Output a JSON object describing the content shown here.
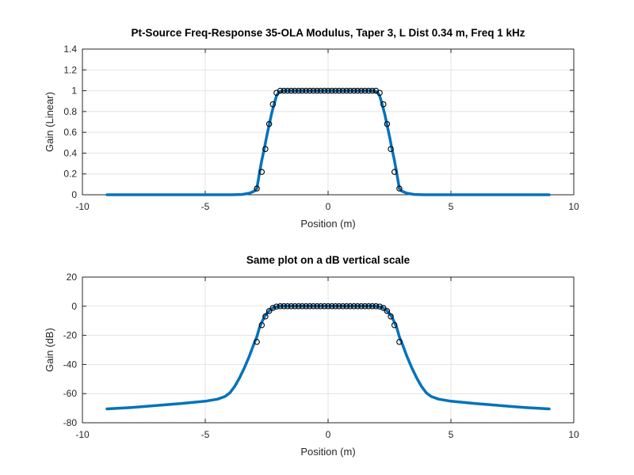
{
  "chart_data": [
    {
      "type": "line",
      "title": "Pt-Source Freq-Response 35-OLA Modulus, Taper 3, L Dist 0.34 m, Freq 1 kHz",
      "xlabel": "Position (m)",
      "ylabel": "Gain (Linear)",
      "xlim": [
        -10,
        10
      ],
      "ylim": [
        0,
        1.4
      ],
      "xticks": [
        -10,
        -5,
        0,
        5,
        10
      ],
      "yticks": [
        0,
        0.2,
        0.4,
        0.6,
        0.8,
        1,
        1.2,
        1.4
      ],
      "xtick_labels": [
        "-10",
        "-5",
        "0",
        "5",
        "10"
      ],
      "ytick_labels": [
        "0",
        "0.2",
        "0.4",
        "0.6",
        "0.8",
        "1",
        "1.2",
        "1.4"
      ],
      "grid": true,
      "line_color": "#0072BD",
      "series": [
        {
          "kind": "line",
          "x": [
            -9.0,
            -6.0,
            -4.5,
            -3.9,
            -3.5,
            -3.2,
            -3.0,
            -2.9,
            -2.8,
            -2.7,
            -2.6,
            -2.5,
            -2.4,
            -2.3,
            -2.2,
            -2.1,
            -2.0,
            -1.8,
            0.0,
            1.8,
            2.0,
            2.1,
            2.2,
            2.3,
            2.4,
            2.5,
            2.6,
            2.7,
            2.8,
            2.9,
            3.0,
            3.2,
            3.5,
            3.9,
            4.5,
            6.0,
            9.0
          ],
          "y": [
            0.0,
            0.0,
            0.0,
            0.0,
            0.003,
            0.015,
            0.035,
            0.06,
            0.2,
            0.33,
            0.44,
            0.56,
            0.67,
            0.78,
            0.87,
            0.95,
            0.99,
            1.0,
            1.0,
            1.0,
            0.99,
            0.95,
            0.87,
            0.78,
            0.67,
            0.56,
            0.44,
            0.33,
            0.2,
            0.06,
            0.035,
            0.015,
            0.003,
            0.0,
            0.0,
            0.0,
            0.0
          ]
        },
        {
          "kind": "markers",
          "x": [
            -2.9,
            -2.7,
            -2.55,
            -2.4,
            -2.25,
            -2.1,
            -1.95,
            -1.8,
            -1.65,
            -1.5,
            -1.35,
            -1.2,
            -1.05,
            -0.9,
            -0.75,
            -0.6,
            -0.45,
            -0.3,
            -0.15,
            0.0,
            0.15,
            0.3,
            0.45,
            0.6,
            0.75,
            0.9,
            1.05,
            1.2,
            1.35,
            1.5,
            1.65,
            1.8,
            1.95,
            2.1,
            2.25,
            2.4,
            2.55,
            2.7,
            2.9
          ],
          "y": [
            0.06,
            0.22,
            0.44,
            0.68,
            0.87,
            0.98,
            1.0,
            1.0,
            1.0,
            1.0,
            1.0,
            1.0,
            1.0,
            1.0,
            1.0,
            1.0,
            1.0,
            1.0,
            1.0,
            1.0,
            1.0,
            1.0,
            1.0,
            1.0,
            1.0,
            1.0,
            1.0,
            1.0,
            1.0,
            1.0,
            1.0,
            1.0,
            1.0,
            0.98,
            0.87,
            0.68,
            0.44,
            0.22,
            0.06
          ]
        }
      ]
    },
    {
      "type": "line",
      "title": "Same plot on a dB vertical scale",
      "xlabel": "Position (m)",
      "ylabel": "Gain (dB)",
      "xlim": [
        -10,
        10
      ],
      "ylim": [
        -80,
        20
      ],
      "xticks": [
        -10,
        -5,
        0,
        5,
        10
      ],
      "yticks": [
        -80,
        -60,
        -40,
        -20,
        0,
        20
      ],
      "xtick_labels": [
        "-10",
        "-5",
        "0",
        "5",
        "10"
      ],
      "ytick_labels": [
        "-80",
        "-60",
        "-40",
        "-20",
        "0",
        "20"
      ],
      "grid": true,
      "line_color": "#0072BD",
      "series": [
        {
          "kind": "line",
          "x": [
            -9.0,
            -8.0,
            -7.0,
            -6.0,
            -5.0,
            -4.5,
            -4.2,
            -4.0,
            -3.8,
            -3.6,
            -3.4,
            -3.2,
            -3.0,
            -2.9,
            -2.8,
            -2.7,
            -2.6,
            -2.5,
            -2.4,
            -2.3,
            -2.2,
            -2.1,
            -2.0,
            -1.9,
            0.0,
            1.9,
            2.0,
            2.1,
            2.2,
            2.3,
            2.4,
            2.5,
            2.6,
            2.7,
            2.8,
            2.9,
            3.0,
            3.2,
            3.4,
            3.6,
            3.8,
            4.0,
            4.2,
            4.5,
            5.0,
            6.0,
            7.0,
            8.0,
            9.0
          ],
          "y": [
            -70.5,
            -69.5,
            -68.2,
            -66.8,
            -65.2,
            -63.8,
            -62.0,
            -59.5,
            -55.0,
            -49.0,
            -42.0,
            -34.0,
            -25.0,
            -21.0,
            -15.0,
            -11.0,
            -7.5,
            -5.0,
            -3.2,
            -1.8,
            -0.8,
            -0.3,
            -0.1,
            0.0,
            0.0,
            0.0,
            -0.1,
            -0.3,
            -0.8,
            -1.8,
            -3.2,
            -5.0,
            -7.5,
            -11.0,
            -15.0,
            -21.0,
            -25.0,
            -34.0,
            -42.0,
            -49.0,
            -55.0,
            -59.5,
            -62.0,
            -63.8,
            -65.2,
            -66.8,
            -68.2,
            -69.5,
            -70.5
          ]
        },
        {
          "kind": "markers",
          "x": [
            -2.9,
            -2.7,
            -2.55,
            -2.4,
            -2.25,
            -2.1,
            -1.95,
            -1.8,
            -1.65,
            -1.5,
            -1.35,
            -1.2,
            -1.05,
            -0.9,
            -0.75,
            -0.6,
            -0.45,
            -0.3,
            -0.15,
            0.0,
            0.15,
            0.3,
            0.45,
            0.6,
            0.75,
            0.9,
            1.05,
            1.2,
            1.35,
            1.5,
            1.65,
            1.8,
            1.95,
            2.1,
            2.25,
            2.4,
            2.55,
            2.7,
            2.9
          ],
          "y": [
            -24.5,
            -13.0,
            -7.0,
            -3.3,
            -1.2,
            -0.2,
            0.0,
            0.0,
            0.0,
            0.0,
            0.0,
            0.0,
            0.0,
            0.0,
            0.0,
            0.0,
            0.0,
            0.0,
            0.0,
            0.0,
            0.0,
            0.0,
            0.0,
            0.0,
            0.0,
            0.0,
            0.0,
            0.0,
            0.0,
            0.0,
            0.0,
            0.0,
            0.0,
            -0.2,
            -1.2,
            -3.3,
            -7.0,
            -13.0,
            -24.5
          ]
        }
      ]
    }
  ]
}
